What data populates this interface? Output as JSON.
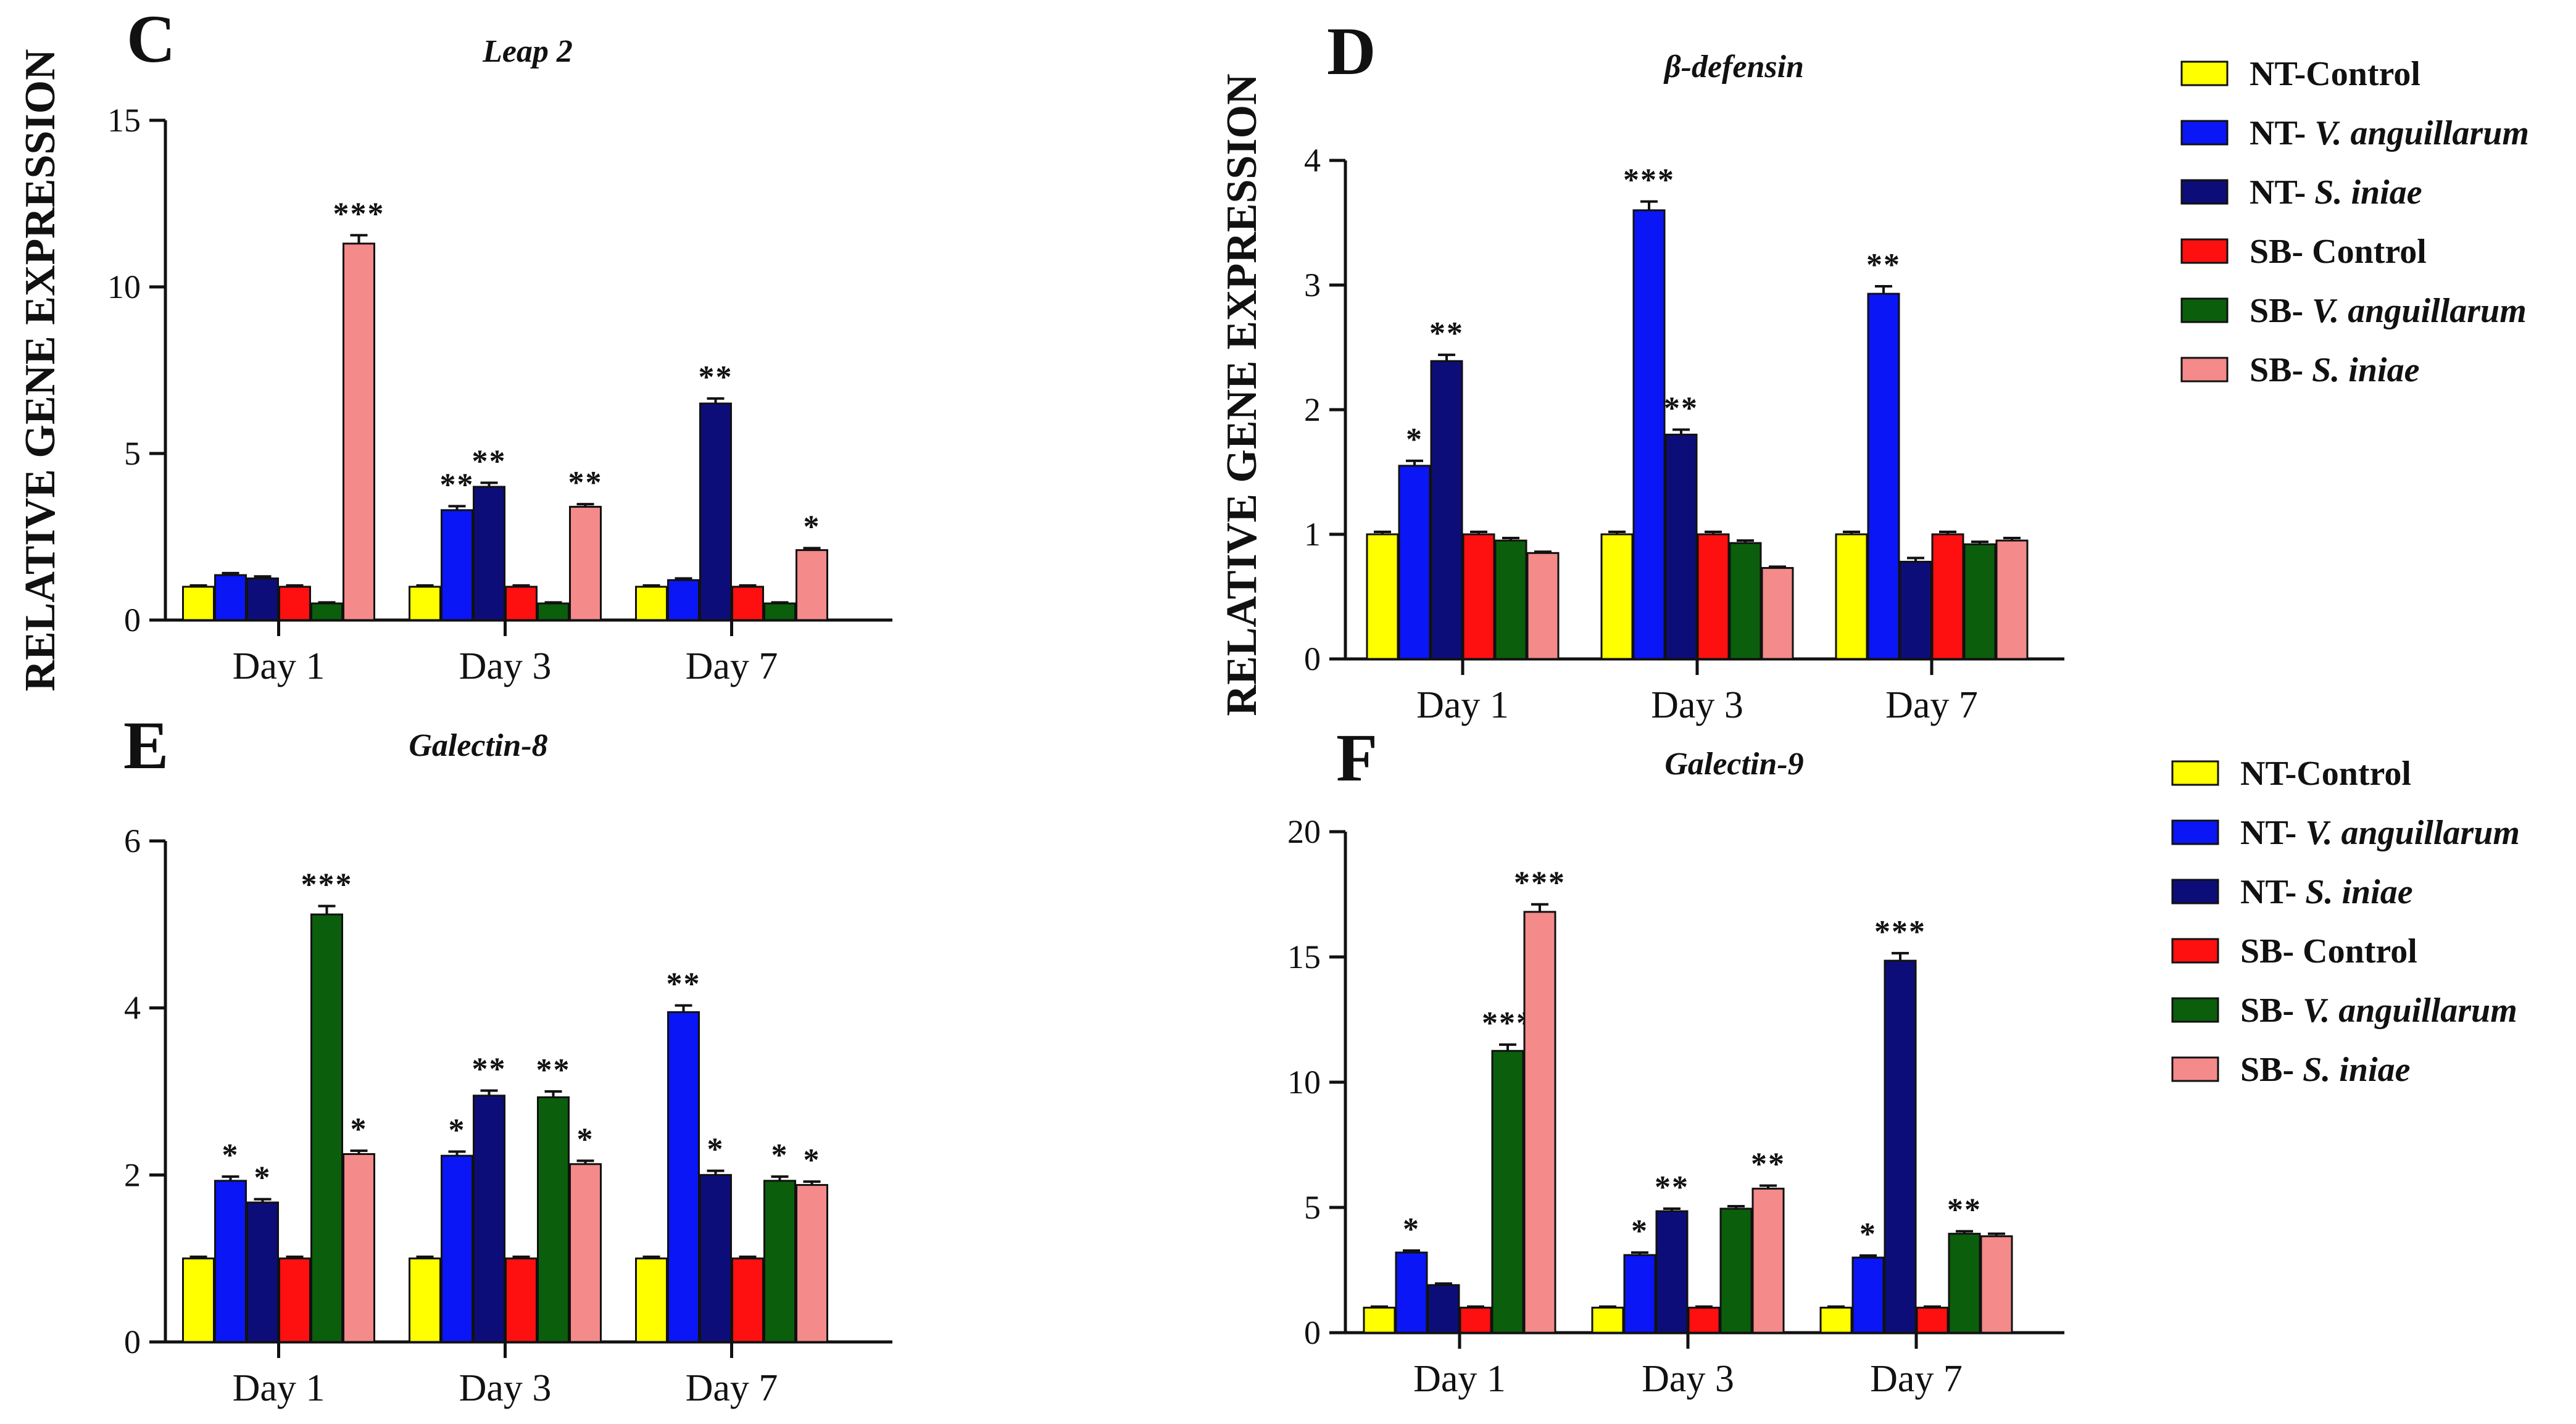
{
  "y_axis_label": "RELATIVE GENE EXPRESSION",
  "legend": {
    "items": [
      {
        "prefix": "NT-Control",
        "suffix": "",
        "color": "#ffff00"
      },
      {
        "prefix": "NT- ",
        "suffix": "V. anguillarum",
        "color": "#0a16f5"
      },
      {
        "prefix": "NT- ",
        "suffix": "S. iniae",
        "color": "#0d0d7a"
      },
      {
        "prefix": "SB- Control",
        "suffix": "",
        "color": "#ff1010"
      },
      {
        "prefix": "SB- ",
        "suffix": "V. anguillarum",
        "color": "#0b5e0b"
      },
      {
        "prefix": "SB- ",
        "suffix": "S. iniae",
        "color": "#f48a8a"
      }
    ]
  },
  "chart_data": [
    {
      "type": "bar",
      "panel": "C",
      "title": "Leap 2",
      "categories": [
        "Day 1",
        "Day 3",
        "Day 7"
      ],
      "ylim": [
        0,
        15
      ],
      "yticks": [
        0,
        5,
        10,
        15
      ],
      "series": [
        {
          "name": "NT-Control",
          "values": [
            1.0,
            1.0,
            1.0
          ],
          "errors": [
            0.04,
            0.04,
            0.04
          ],
          "sig": [
            "",
            "",
            ""
          ]
        },
        {
          "name": "NT- V. anguillarum",
          "values": [
            1.35,
            3.3,
            1.2
          ],
          "errors": [
            0.06,
            0.12,
            0.05
          ],
          "sig": [
            "",
            "**",
            ""
          ]
        },
        {
          "name": "NT- S. iniae",
          "values": [
            1.25,
            4.0,
            6.5
          ],
          "errors": [
            0.06,
            0.12,
            0.15
          ],
          "sig": [
            "",
            "**",
            "**"
          ]
        },
        {
          "name": "SB- Control",
          "values": [
            1.0,
            1.0,
            1.0
          ],
          "errors": [
            0.04,
            0.04,
            0.04
          ],
          "sig": [
            "",
            "",
            ""
          ]
        },
        {
          "name": "SB- V. anguillarum",
          "values": [
            0.5,
            0.5,
            0.5
          ],
          "errors": [
            0.03,
            0.03,
            0.03
          ],
          "sig": [
            "",
            "",
            ""
          ]
        },
        {
          "name": "SB- S. iniae",
          "values": [
            11.3,
            3.4,
            2.1
          ],
          "errors": [
            0.25,
            0.08,
            0.06
          ],
          "sig": [
            "***",
            "**",
            "*"
          ]
        }
      ]
    },
    {
      "type": "bar",
      "panel": "D",
      "title": "β-defensin",
      "categories": [
        "Day 1",
        "Day 3",
        "Day 7"
      ],
      "ylim": [
        0,
        4
      ],
      "yticks": [
        0,
        1,
        2,
        3,
        4
      ],
      "series": [
        {
          "name": "NT-Control",
          "values": [
            1.0,
            1.0,
            1.0
          ],
          "errors": [
            0.02,
            0.02,
            0.02
          ],
          "sig": [
            "",
            "",
            ""
          ]
        },
        {
          "name": "NT- V. anguillarum",
          "values": [
            1.55,
            3.6,
            2.93
          ],
          "errors": [
            0.04,
            0.07,
            0.06
          ],
          "sig": [
            "*",
            "***",
            "**"
          ]
        },
        {
          "name": "NT- S. iniae",
          "values": [
            2.39,
            1.8,
            0.78
          ],
          "errors": [
            0.05,
            0.04,
            0.03
          ],
          "sig": [
            "**",
            "**",
            ""
          ]
        },
        {
          "name": "SB- Control",
          "values": [
            1.0,
            1.0,
            1.0
          ],
          "errors": [
            0.02,
            0.02,
            0.02
          ],
          "sig": [
            "",
            "",
            ""
          ]
        },
        {
          "name": "SB- V. anguillarum",
          "values": [
            0.95,
            0.93,
            0.92
          ],
          "errors": [
            0.02,
            0.02,
            0.02
          ],
          "sig": [
            "",
            "",
            ""
          ]
        },
        {
          "name": "SB- S. iniae",
          "values": [
            0.85,
            0.73,
            0.95
          ],
          "errors": [
            0.01,
            0.01,
            0.02
          ],
          "sig": [
            "",
            "",
            ""
          ]
        }
      ]
    },
    {
      "type": "bar",
      "panel": "E",
      "title": "Galectin-8",
      "categories": [
        "Day 1",
        "Day 3",
        "Day 7"
      ],
      "ylim": [
        0,
        6
      ],
      "yticks": [
        0,
        2,
        4,
        6
      ],
      "series": [
        {
          "name": "NT-Control",
          "values": [
            1.0,
            1.0,
            1.0
          ],
          "errors": [
            0.02,
            0.02,
            0.02
          ],
          "sig": [
            "",
            "",
            ""
          ]
        },
        {
          "name": "NT- V. anguillarum",
          "values": [
            1.93,
            2.23,
            3.95
          ],
          "errors": [
            0.05,
            0.05,
            0.08
          ],
          "sig": [
            "*",
            "*",
            "**"
          ]
        },
        {
          "name": "NT- S. iniae",
          "values": [
            1.67,
            2.95,
            2.0
          ],
          "errors": [
            0.04,
            0.06,
            0.05
          ],
          "sig": [
            "*",
            "**",
            "*"
          ]
        },
        {
          "name": "SB- Control",
          "values": [
            1.0,
            1.0,
            1.0
          ],
          "errors": [
            0.02,
            0.02,
            0.02
          ],
          "sig": [
            "",
            "",
            ""
          ]
        },
        {
          "name": "SB- V. anguillarum",
          "values": [
            5.12,
            2.93,
            1.93
          ],
          "errors": [
            0.1,
            0.07,
            0.05
          ],
          "sig": [
            "***",
            "**",
            "*"
          ]
        },
        {
          "name": "SB- S. iniae",
          "values": [
            2.25,
            2.13,
            1.88
          ],
          "errors": [
            0.04,
            0.04,
            0.04
          ],
          "sig": [
            "*",
            "*",
            "*"
          ]
        }
      ]
    },
    {
      "type": "bar",
      "panel": "F",
      "title": "Galectin-9",
      "categories": [
        "Day 1",
        "Day 3",
        "Day 7"
      ],
      "ylim": [
        0,
        20
      ],
      "yticks": [
        0,
        5,
        10,
        15,
        20
      ],
      "series": [
        {
          "name": "NT-Control",
          "values": [
            1.0,
            1.0,
            1.0
          ],
          "errors": [
            0.04,
            0.04,
            0.04
          ],
          "sig": [
            "",
            "",
            ""
          ]
        },
        {
          "name": "NT- V. anguillarum",
          "values": [
            3.2,
            3.1,
            3.0
          ],
          "errors": [
            0.08,
            0.1,
            0.08
          ],
          "sig": [
            "*",
            "*",
            "*"
          ]
        },
        {
          "name": "NT- S. iniae",
          "values": [
            1.9,
            4.85,
            14.85
          ],
          "errors": [
            0.06,
            0.1,
            0.3
          ],
          "sig": [
            "",
            "**",
            "***"
          ]
        },
        {
          "name": "SB- Control",
          "values": [
            1.0,
            1.0,
            1.0
          ],
          "errors": [
            0.04,
            0.04,
            0.04
          ],
          "sig": [
            "",
            "",
            ""
          ]
        },
        {
          "name": "SB- V. anguillarum",
          "values": [
            11.25,
            4.95,
            3.95
          ],
          "errors": [
            0.25,
            0.1,
            0.1
          ],
          "sig": [
            "***",
            "",
            "**"
          ]
        },
        {
          "name": "SB- S. iniae",
          "values": [
            16.8,
            5.75,
            3.85
          ],
          "errors": [
            0.3,
            0.12,
            0.1
          ],
          "sig": [
            "***",
            "**",
            ""
          ]
        }
      ]
    }
  ]
}
